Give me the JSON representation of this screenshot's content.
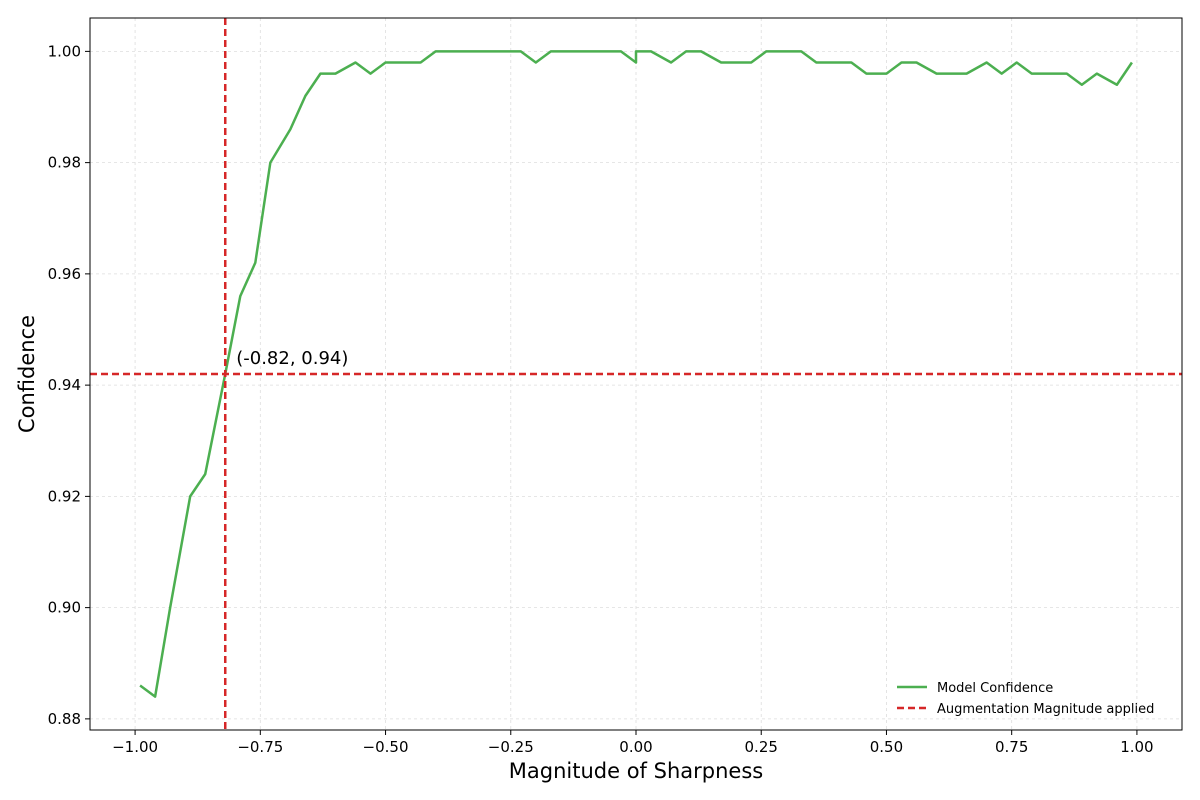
{
  "chart_data": {
    "type": "line",
    "title": "",
    "xlabel": "Magnitude of Sharpness",
    "ylabel": "Confidence",
    "xlim": [
      -1.09,
      1.09
    ],
    "ylim": [
      0.878,
      1.006
    ],
    "xticks": [
      -1.0,
      -0.75,
      -0.5,
      -0.25,
      0.0,
      0.25,
      0.5,
      0.75,
      1.0
    ],
    "xtick_labels": [
      "−1.00",
      "−0.75",
      "−0.50",
      "−0.25",
      "0.00",
      "0.25",
      "0.50",
      "0.75",
      "1.00"
    ],
    "yticks": [
      0.88,
      0.9,
      0.92,
      0.94,
      0.96,
      0.98,
      1.0
    ],
    "ytick_labels": [
      "0.88",
      "0.90",
      "0.92",
      "0.94",
      "0.96",
      "0.98",
      "1.00"
    ],
    "grid": true,
    "legend_position": "bottom-right",
    "series": [
      {
        "name": "Model Confidence",
        "color": "#4caf50",
        "style": "solid",
        "x": [
          -0.99,
          -0.96,
          -0.93,
          -0.89,
          -0.86,
          -0.82,
          -0.79,
          -0.76,
          -0.73,
          -0.69,
          -0.66,
          -0.63,
          -0.6,
          -0.56,
          -0.53,
          -0.5,
          -0.46,
          -0.43,
          -0.4,
          -0.36,
          -0.33,
          -0.3,
          -0.26,
          -0.23,
          -0.2,
          -0.17,
          -0.13,
          -0.1,
          -0.07,
          -0.03,
          0.0,
          0.0,
          0.03,
          0.07,
          0.1,
          0.13,
          0.17,
          0.2,
          0.23,
          0.26,
          0.3,
          0.33,
          0.36,
          0.4,
          0.43,
          0.46,
          0.5,
          0.53,
          0.56,
          0.6,
          0.63,
          0.66,
          0.7,
          0.73,
          0.76,
          0.79,
          0.83,
          0.86,
          0.89,
          0.92,
          0.96,
          0.99
        ],
        "y": [
          0.886,
          0.884,
          0.9,
          0.92,
          0.924,
          0.942,
          0.956,
          0.962,
          0.98,
          0.986,
          0.992,
          0.996,
          0.996,
          0.998,
          0.996,
          0.998,
          0.998,
          0.998,
          1.0,
          1.0,
          1.0,
          1.0,
          1.0,
          1.0,
          0.998,
          1.0,
          1.0,
          1.0,
          1.0,
          1.0,
          0.998,
          1.0,
          1.0,
          0.998,
          1.0,
          1.0,
          0.998,
          0.998,
          0.998,
          1.0,
          1.0,
          1.0,
          0.998,
          0.998,
          0.998,
          0.996,
          0.996,
          0.998,
          0.998,
          0.996,
          0.996,
          0.996,
          0.998,
          0.996,
          0.998,
          0.996,
          0.996,
          0.996,
          0.994,
          0.996,
          0.994,
          0.998
        ]
      }
    ],
    "reference_lines": {
      "name": "Augmentation Magnitude applied",
      "color": "#d62728",
      "style": "dashed",
      "x": -0.82,
      "y": 0.942
    },
    "annotation": {
      "text": "(-0.82, 0.94)",
      "x": -0.82,
      "y": 0.942
    }
  }
}
